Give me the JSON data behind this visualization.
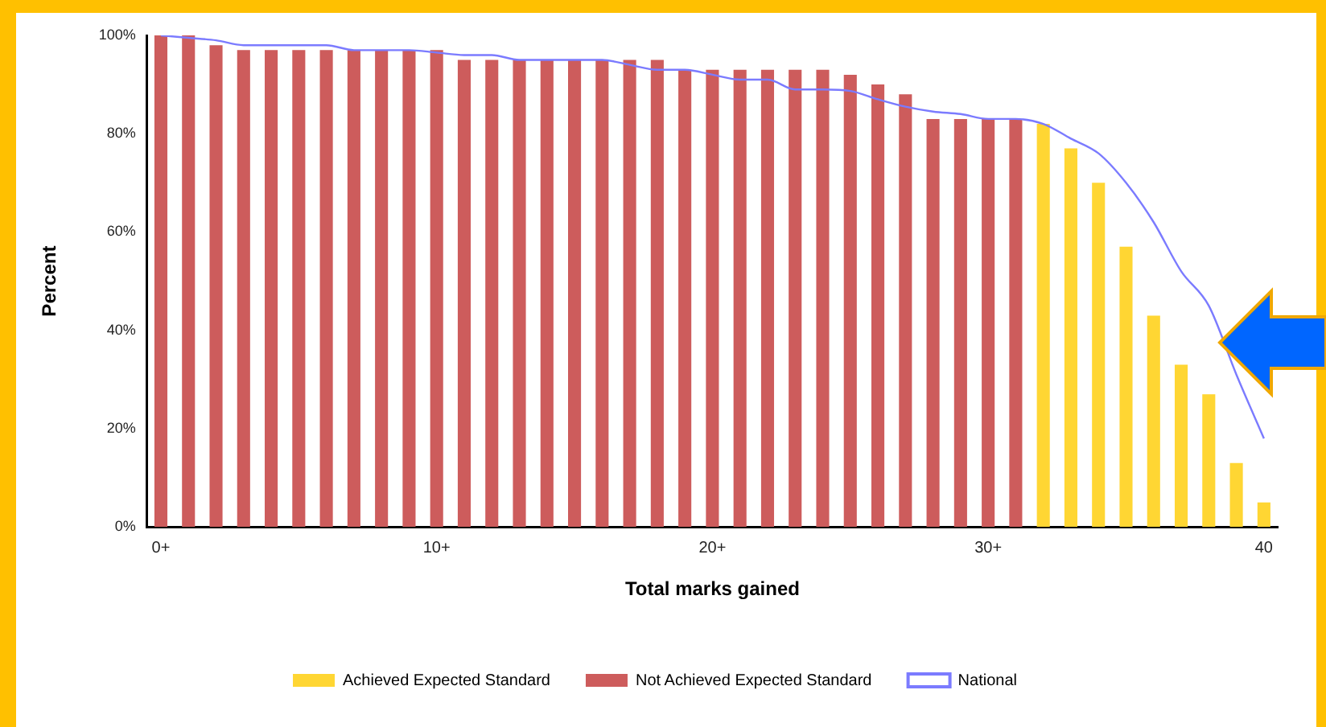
{
  "chart_data": {
    "type": "bar",
    "xlabel": "Total marks gained",
    "ylabel": "Percent",
    "categories": [
      "0+",
      null,
      null,
      null,
      null,
      null,
      null,
      null,
      null,
      null,
      "10+",
      null,
      null,
      null,
      null,
      null,
      null,
      null,
      null,
      null,
      "20+",
      null,
      null,
      null,
      null,
      null,
      null,
      null,
      null,
      null,
      "30+",
      null,
      null,
      null,
      null,
      null,
      null,
      null,
      null,
      null,
      "40"
    ],
    "series": [
      {
        "name": "Achieved Expected Standard",
        "color": "#ffd633",
        "values": [
          null,
          null,
          null,
          null,
          null,
          null,
          null,
          null,
          null,
          null,
          null,
          null,
          null,
          null,
          null,
          null,
          null,
          null,
          null,
          null,
          null,
          null,
          null,
          null,
          null,
          null,
          null,
          null,
          null,
          null,
          null,
          null,
          82,
          77,
          70,
          57,
          43,
          33,
          27,
          13,
          5
        ]
      },
      {
        "name": "Not Achieved Expected Standard",
        "color": "#cd5c5c",
        "values": [
          100,
          100,
          98,
          97,
          97,
          97,
          97,
          97,
          97,
          97,
          97,
          95,
          95,
          95,
          95,
          95,
          95,
          95,
          95,
          93,
          93,
          93,
          93,
          93,
          93,
          92,
          90,
          88,
          83,
          83,
          83,
          83,
          null,
          null,
          null,
          null,
          null,
          null,
          null,
          null,
          null
        ]
      },
      {
        "name": "National",
        "color": "#7b7bff",
        "type": "line",
        "values": [
          100,
          99.5,
          99,
          98,
          98,
          98,
          98,
          97,
          97,
          97,
          96.5,
          96,
          96,
          95,
          95,
          95,
          95,
          94,
          93,
          93,
          92,
          91,
          91,
          89,
          89,
          88.7,
          87,
          85.5,
          84.5,
          84,
          83,
          83,
          82,
          79,
          76,
          70,
          62,
          52,
          45,
          31,
          18
        ]
      }
    ],
    "ylim": [
      0,
      100
    ],
    "yticks": [
      {
        "value": 0,
        "label": "0%"
      },
      {
        "value": 20,
        "label": "20%"
      },
      {
        "value": 40,
        "label": "40%"
      },
      {
        "value": 60,
        "label": "60%"
      },
      {
        "value": 80,
        "label": "80%"
      },
      {
        "value": 100,
        "label": "100%"
      }
    ],
    "grid": false,
    "legend": "bottom",
    "marker": "none",
    "line_style": "solid"
  }
}
